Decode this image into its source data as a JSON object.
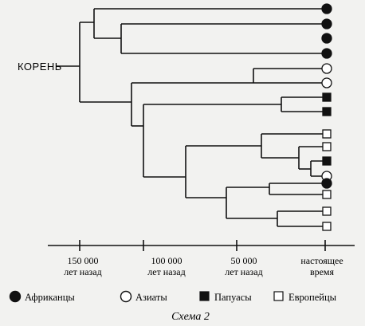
{
  "diagram": {
    "root_label": "КОРЕНЬ",
    "caption": "Схема 2",
    "axis_ticks": [
      {
        "line1": "150 000",
        "line2": "лет назад"
      },
      {
        "line1": "100 000",
        "line2": "лет назад"
      },
      {
        "line1": "50 000",
        "line2": "лет назад"
      },
      {
        "line1": "настоящее",
        "line2": "время"
      }
    ],
    "legend": [
      {
        "label": "Африканцы",
        "marker": "filled-circle"
      },
      {
        "label": "Азиаты",
        "marker": "open-circle"
      },
      {
        "label": "Папуасы",
        "marker": "filled-square"
      },
      {
        "label": "Европейцы",
        "marker": "open-square"
      }
    ],
    "leaves": [
      "filled-circle",
      "filled-circle",
      "filled-circle",
      "filled-circle",
      "open-circle",
      "open-circle",
      "filled-square",
      "filled-square",
      "open-square",
      "open-square",
      "filled-square",
      "open-circle",
      "filled-circle",
      "open-square",
      "open-square",
      "open-square"
    ]
  }
}
